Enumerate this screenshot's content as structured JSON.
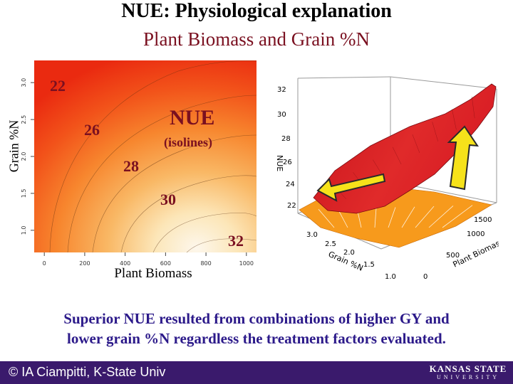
{
  "title": "NUE: Physiological explanation",
  "subtitle": "Plant Biomass and Grain %N",
  "caption_line1": "Superior NUE resulted from combinations of higher GY and",
  "caption_line2": "lower grain %N regardless the treatment factors evaluated.",
  "footer": {
    "credit": "© IA Ciampitti, K-State Univ",
    "logo_top": "KANSAS STATE",
    "logo_bottom": "UNIVERSITY"
  },
  "chart_data": [
    {
      "type": "heatmap",
      "title": "",
      "xlabel": "Plant Biomass",
      "ylabel": "Grain %N",
      "x_ticks": [
        "0",
        "200",
        "400",
        "600",
        "800",
        "1000"
      ],
      "y_ticks": [
        "1.0",
        "1.5",
        "2.0",
        "2.5",
        "3.0"
      ],
      "xlim": [
        -50,
        1050
      ],
      "ylim": [
        0.7,
        3.3
      ],
      "isoline_labels": [
        "22",
        "26",
        "28",
        "30",
        "32"
      ],
      "annotation": "NUE",
      "annotation_sub": "(isolines)",
      "colors": {
        "low": "#ee2a10",
        "mid": "#f8a030",
        "high": "#fdf7ec"
      }
    },
    {
      "type": "surface",
      "zlabel": "NUE",
      "z_ticks": [
        "32",
        "30",
        "28",
        "26",
        "24",
        "22"
      ],
      "x_label": "Grain %N",
      "x_ticks": [
        "3.0",
        "2.5",
        "2.0",
        "1.5",
        "1.0"
      ],
      "y_label": "Plant Biomass",
      "y_ticks": [
        "1500",
        "1000",
        "500",
        "0"
      ],
      "colors": {
        "surface": "#d8202a",
        "projection": "#f79a1c",
        "arrow": "#f6e21a",
        "arrow_edge": "#2a2a2a"
      }
    }
  ]
}
